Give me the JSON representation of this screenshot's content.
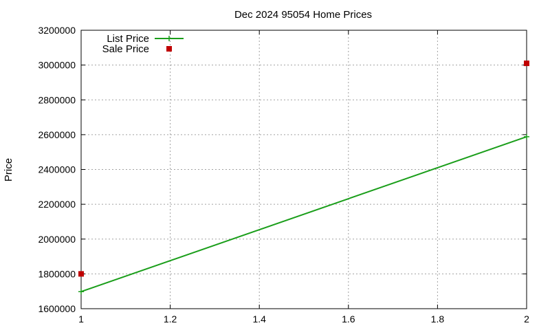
{
  "chart_data": {
    "type": "line",
    "title": "Dec 2024 95054 Home Prices",
    "xlabel": "",
    "ylabel": "Price",
    "xlim": [
      1,
      2
    ],
    "ylim": [
      1600000,
      3200000
    ],
    "xticks": [
      "1",
      "1.2",
      "1.4",
      "1.6",
      "1.8",
      "2"
    ],
    "xtick_values": [
      1,
      1.2,
      1.4,
      1.6,
      1.8,
      2
    ],
    "yticks": [
      "1600000",
      "1800000",
      "2000000",
      "2200000",
      "2400000",
      "2600000",
      "2800000",
      "3000000",
      "3200000"
    ],
    "ytick_values": [
      1600000,
      1800000,
      2000000,
      2200000,
      2400000,
      2600000,
      2800000,
      3000000,
      3200000
    ],
    "grid": true,
    "legend_position": "top-left",
    "series": [
      {
        "name": "List Price",
        "style": "linespoints",
        "color": "#1a9e1a",
        "marker": "plus",
        "x": [
          1,
          2
        ],
        "y": [
          1698000,
          2588000
        ]
      },
      {
        "name": "Sale Price",
        "style": "points",
        "color": "#c00000",
        "marker": "square",
        "x": [
          1,
          2
        ],
        "y": [
          1800000,
          3010000
        ]
      }
    ]
  }
}
